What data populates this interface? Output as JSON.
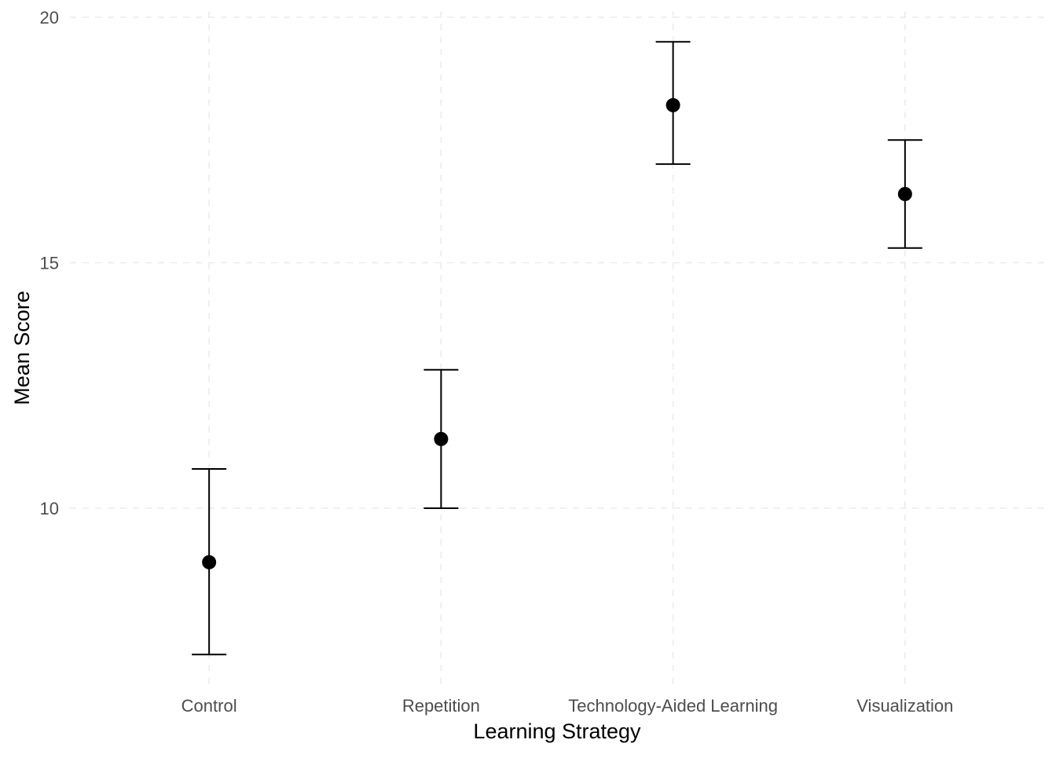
{
  "chart_data": {
    "type": "scatter",
    "subtype": "point-with-errorbars",
    "title": "",
    "xlabel": "Learning Strategy",
    "ylabel": "Mean Score",
    "categories": [
      "Control",
      "Repetition",
      "Technology-Aided Learning",
      "Visualization"
    ],
    "series": [
      {
        "name": "Mean Score",
        "values": [
          8.9,
          11.41,
          18.21,
          16.4
        ],
        "upper": [
          10.8,
          12.82,
          19.5,
          17.5
        ],
        "lower": [
          7.02,
          10.0,
          17.01,
          15.3
        ]
      }
    ],
    "ylim": [
      6.4,
      20.12
    ],
    "yticks": [
      10,
      15,
      20
    ],
    "grid": true,
    "colors": {
      "point": "#000000",
      "grid": "#ebebeb",
      "tick_text": "#4d4d4d"
    }
  }
}
